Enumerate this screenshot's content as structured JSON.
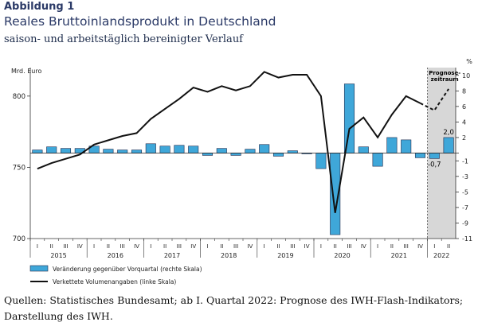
{
  "figure": {
    "label": "Abbildung 1",
    "title": "Reales Bruttoinlandsprodukt in Deutschland",
    "subtitle": "saison- und arbeitstäglich bereinigter Verlauf",
    "source": "Quellen: Statistisches Bundesamt; ab I. Quartal 2022: Prognose des IWH-Flash-Indikators; Darstellung des IWH."
  },
  "colors": {
    "bar_fill": "#3fa7d9",
    "bar_stroke": "#1f2d4f",
    "line": "#111111",
    "forecast_shade": "#d7d7d7",
    "axis": "#333333",
    "grid": "#bbbbbb"
  },
  "chart_data": {
    "type": "bar+line",
    "left_axis": {
      "unit_label": "Mrd. Euro",
      "ylim": [
        700,
        820
      ],
      "ticks": [
        700,
        750,
        800
      ]
    },
    "right_axis": {
      "unit_label": "%",
      "ylim": [
        -11,
        11
      ],
      "ticks": [
        10,
        8,
        6,
        4,
        2,
        0,
        -1,
        -3,
        -5,
        -7,
        -9,
        -11
      ],
      "tick_labels": [
        "10",
        "8",
        "6",
        "4",
        "2",
        "",
        "-1",
        "-3",
        "-5",
        "-7",
        "-9",
        "-11"
      ]
    },
    "quarter_labels": [
      "I",
      "II",
      "III",
      "IV",
      "I",
      "II",
      "III",
      "IV",
      "I",
      "II",
      "III",
      "IV",
      "I",
      "II",
      "III",
      "IV",
      "I",
      "II",
      "III",
      "IV",
      "I",
      "II",
      "III",
      "IV",
      "I",
      "II",
      "III",
      "IV",
      "I",
      "II"
    ],
    "years": [
      "2015",
      "2016",
      "2017",
      "2018",
      "2019",
      "2020",
      "2021",
      "2022"
    ],
    "grid": false,
    "legend_position": "bottom",
    "forecast_label": "Prognose-\nzeitraum",
    "forecast_start_index": 28,
    "series": [
      {
        "name": "Veränderung gegenüber Vorquartal (rechte Skala)",
        "type": "bar",
        "axis": "right",
        "values": [
          0.4,
          0.8,
          0.6,
          0.6,
          0.9,
          0.5,
          0.4,
          0.4,
          1.2,
          0.9,
          1.0,
          0.9,
          -0.3,
          0.6,
          -0.3,
          0.5,
          1.1,
          -0.4,
          0.3,
          -0.1,
          -2.0,
          -10.5,
          8.9,
          0.8,
          -1.7,
          2.0,
          1.7,
          -0.6,
          -0.7,
          2.0
        ]
      },
      {
        "name": "Verkettete Volumenangaben (linke Skala)",
        "type": "line",
        "axis": "left",
        "values": [
          749,
          753,
          756,
          759,
          766,
          769,
          772,
          774,
          784,
          791,
          798,
          806,
          803,
          807,
          804,
          807,
          817,
          813,
          815,
          815,
          800,
          718,
          777,
          785,
          771,
          787,
          800,
          795,
          790,
          805
        ]
      }
    ],
    "annotations": [
      {
        "index": 28,
        "text": "-0,7"
      },
      {
        "index": 29,
        "text": "2,0"
      }
    ]
  }
}
